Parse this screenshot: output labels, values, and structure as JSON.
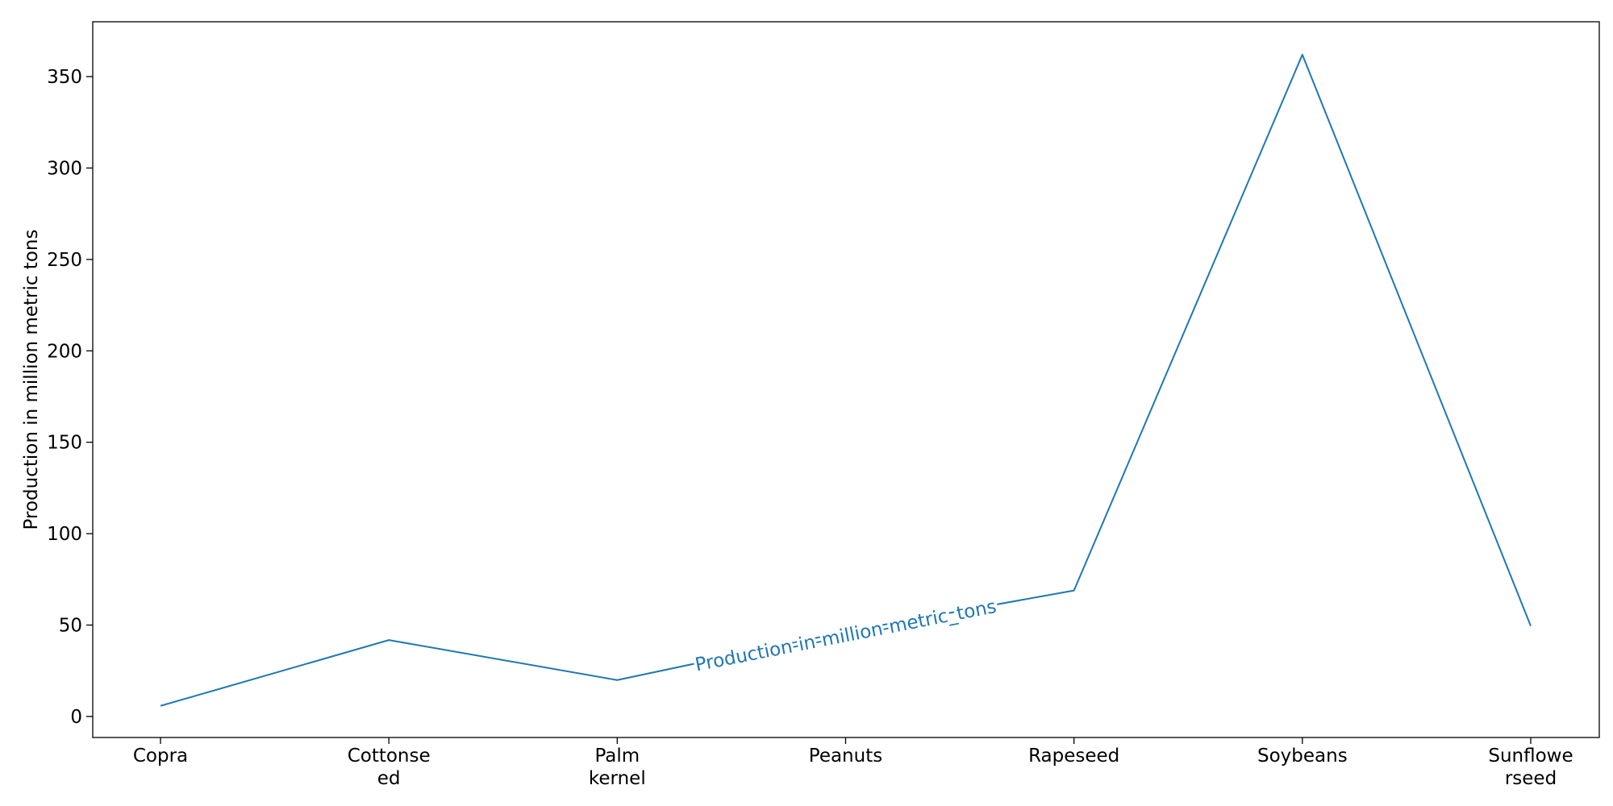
{
  "chart_data": {
    "type": "line",
    "title": "",
    "xlabel": "",
    "ylabel": "Production in million metric tons",
    "categories": [
      [
        "Copra"
      ],
      [
        "Cottonse",
        "ed"
      ],
      [
        "Palm",
        "kernel"
      ],
      [
        "Peanuts"
      ],
      [
        "Rapeseed"
      ],
      [
        "Soybeans"
      ],
      [
        "Sunflowe",
        "rseed"
      ]
    ],
    "series": [
      {
        "name": "Production-in-million-metric_tons",
        "values": [
          5.8,
          41.8,
          19.9,
          46.4,
          68.9,
          362.0,
          49.5
        ],
        "color": "#1f77b4"
      }
    ],
    "ylim": [
      -11.5,
      380
    ],
    "yticks": [
      0,
      50,
      100,
      150,
      200,
      250,
      300,
      350
    ],
    "grid": false,
    "legend": "none",
    "inline_label_between": [
      2,
      4
    ]
  }
}
